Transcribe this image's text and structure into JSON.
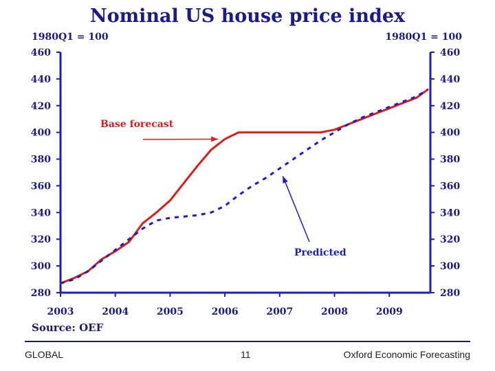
{
  "chart_data": {
    "type": "line",
    "title": "Nominal US house price index",
    "ylabel_left": "1980Q1 = 100",
    "ylabel_right": "1980Q1 = 100",
    "source": "Source: OEF",
    "ylim": [
      280,
      460
    ],
    "xlim": [
      2003,
      2009.75
    ],
    "y_ticks": [
      280,
      300,
      320,
      340,
      360,
      380,
      400,
      420,
      440,
      460
    ],
    "x_ticks": [
      "2003",
      "2004",
      "2005",
      "2006",
      "2007",
      "2008",
      "2009"
    ],
    "grid": false,
    "series": [
      {
        "name": "Base forecast",
        "color": "#dd1c1c",
        "style": "solid",
        "x": [
          2003.0,
          2003.25,
          2003.5,
          2003.75,
          2004.0,
          2004.25,
          2004.5,
          2004.75,
          2005.0,
          2005.25,
          2005.5,
          2005.75,
          2006.0,
          2006.25,
          2006.5,
          2006.75,
          2007.0,
          2007.25,
          2007.5,
          2007.75,
          2008.0,
          2008.25,
          2008.5,
          2008.75,
          2009.0,
          2009.25,
          2009.5,
          2009.7
        ],
        "values": [
          287,
          291,
          296,
          305,
          311,
          318,
          332,
          340,
          349,
          362,
          375,
          387,
          395,
          400,
          400,
          400,
          400,
          400,
          400,
          400,
          402,
          406,
          410,
          414,
          418,
          422,
          426,
          432
        ]
      },
      {
        "name": "Predicted",
        "color": "#1c1cc8",
        "style": "dashed",
        "x": [
          2003.0,
          2003.25,
          2003.5,
          2003.75,
          2004.0,
          2004.25,
          2004.5,
          2004.75,
          2005.0,
          2005.25,
          2005.5,
          2005.75,
          2006.0,
          2006.25,
          2006.5,
          2006.75,
          2007.0,
          2007.25,
          2007.5,
          2007.75,
          2008.0,
          2008.25,
          2008.5,
          2008.75,
          2009.0,
          2009.25,
          2009.5,
          2009.7
        ],
        "values": [
          287,
          290,
          296,
          304,
          312,
          320,
          328,
          334,
          336,
          337,
          338,
          340,
          345,
          353,
          360,
          366,
          373,
          380,
          387,
          394,
          400,
          406,
          411,
          415,
          419,
          423,
          427,
          432
        ]
      }
    ],
    "annotations": [
      {
        "text": "Base forecast",
        "color": "#dd1c1c",
        "series": "Base forecast",
        "arrow_to_x": 2006.0,
        "arrow_to_y": 395
      },
      {
        "text": "Predicted",
        "color": "#1c1cc8",
        "series": "Predicted",
        "arrow_to_x": 2007.0,
        "arrow_to_y": 373
      }
    ],
    "colors": {
      "title": "#1a1a8a",
      "axis": "#1c1cc8",
      "label": "#1a1a8a",
      "text": "#1a1a6e"
    }
  },
  "footer": {
    "left": "GLOBAL",
    "center": "11",
    "right": "Oxford Economic Forecasting"
  }
}
